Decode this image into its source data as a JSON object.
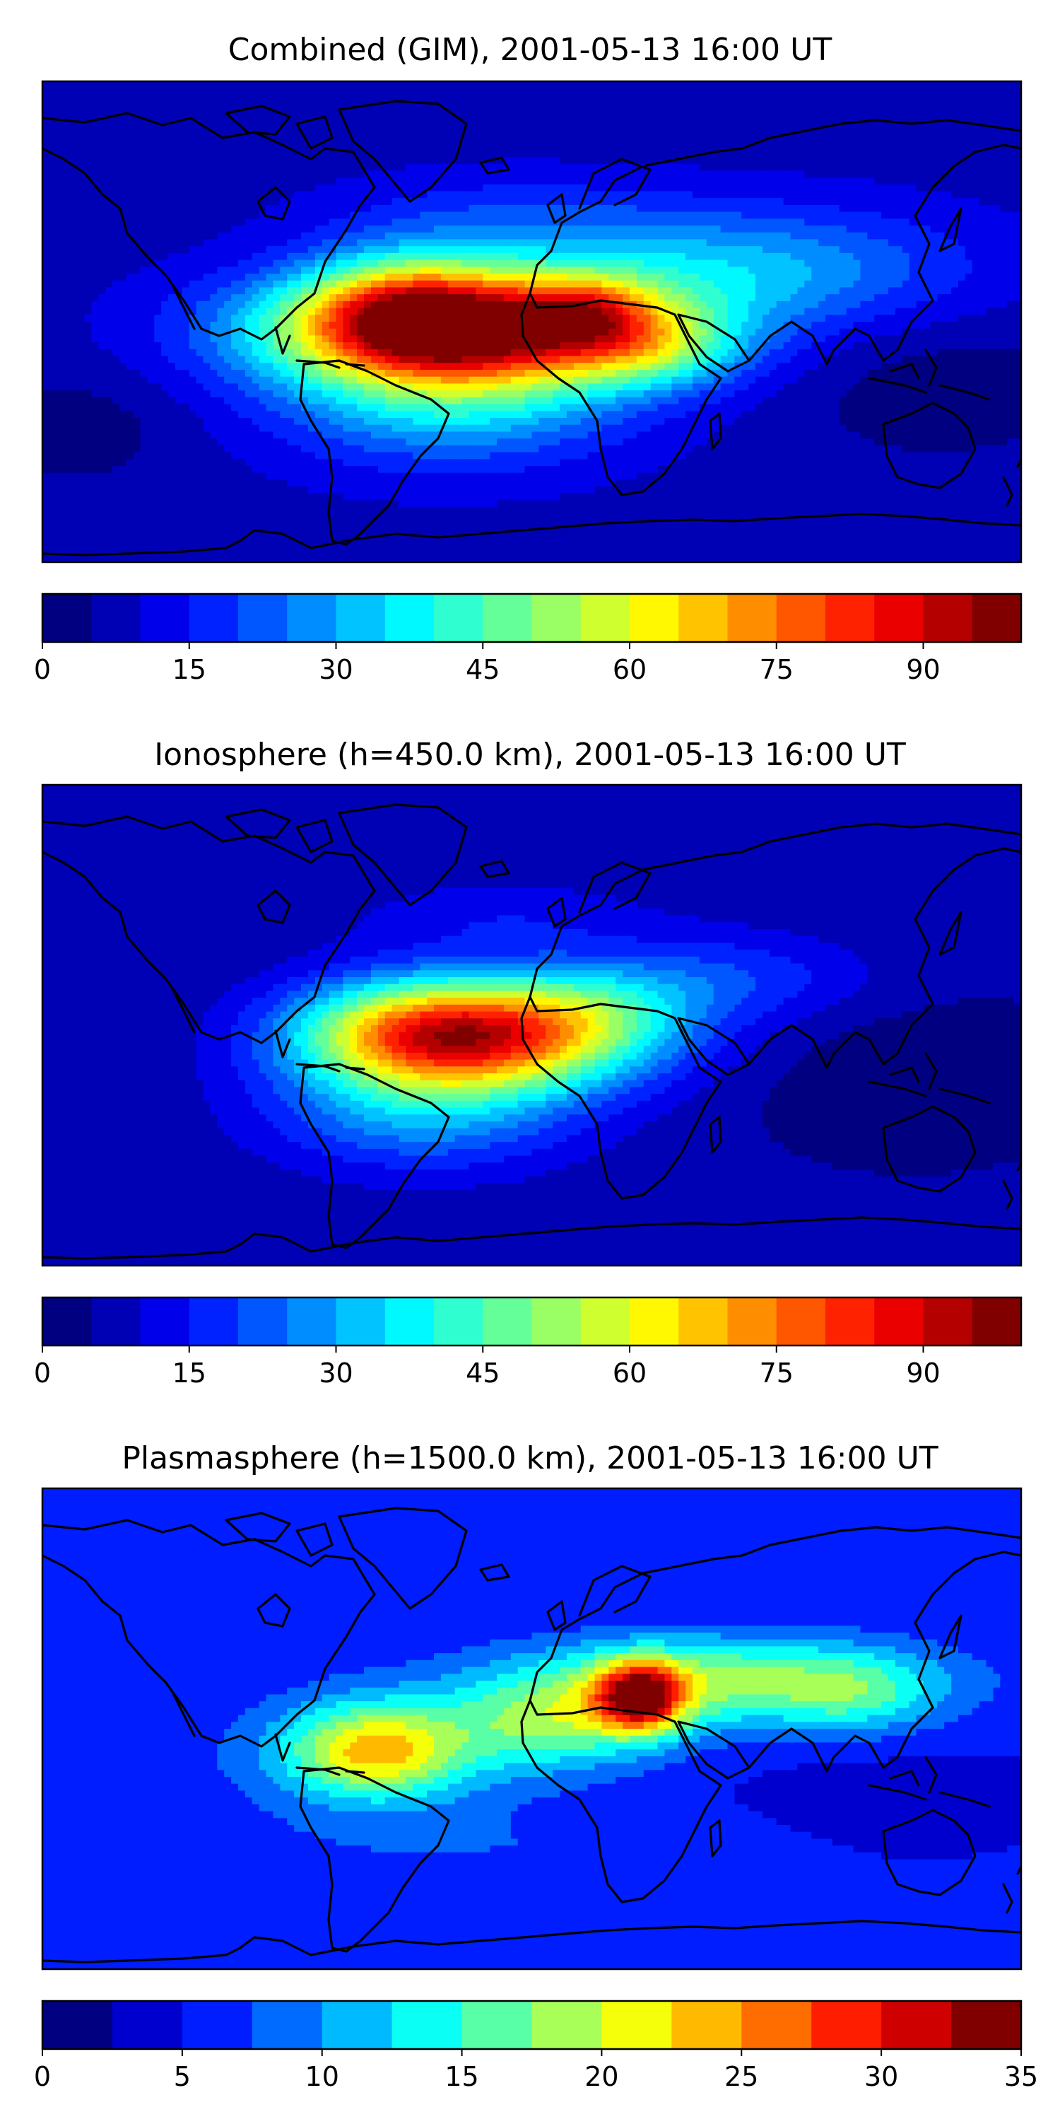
{
  "figure": {
    "panels": [
      {
        "title": "Combined (GIM), 2001-05-13 16:00 UT",
        "colorbar": {
          "vmin": 0,
          "vmax": 100,
          "levels": 20,
          "ticks": [
            "0",
            "15",
            "30",
            "45",
            "60",
            "75",
            "90"
          ],
          "tick_values": [
            0,
            15,
            30,
            45,
            60,
            75,
            90
          ]
        },
        "field": {
          "background": 8,
          "blobs": [
            {
              "lon": -22,
              "lat": -2,
              "amp": 84,
              "slon": 52,
              "slat": 15
            },
            {
              "lon": 20,
              "lat": 4,
              "amp": 22,
              "slon": 16,
              "slat": 9
            },
            {
              "lon": -48,
              "lat": 6,
              "amp": 30,
              "slon": 24,
              "slat": 14
            },
            {
              "lon": -30,
              "lat": -28,
              "amp": 26,
              "slon": 45,
              "slat": 18
            },
            {
              "lon": 80,
              "lat": 20,
              "amp": 22,
              "slon": 55,
              "slat": 16
            },
            {
              "lon": 45,
              "lat": -10,
              "amp": 20,
              "slon": 22,
              "slat": 10
            },
            {
              "lon": -10,
              "lat": 38,
              "amp": 10,
              "slon": 45,
              "slat": 12
            },
            {
              "lon": 150,
              "lat": -25,
              "amp": -6,
              "slon": 40,
              "slat": 20
            },
            {
              "lon": -170,
              "lat": -40,
              "amp": -6,
              "slon": 30,
              "slat": 15
            }
          ]
        }
      },
      {
        "title": "Ionosphere  (h=450.0 km), 2001-05-13 16:00 UT",
        "colorbar": {
          "vmin": 0,
          "vmax": 100,
          "levels": 20,
          "ticks": [
            "0",
            "15",
            "30",
            "45",
            "60",
            "75",
            "90"
          ],
          "tick_values": [
            0,
            15,
            30,
            45,
            60,
            75,
            90
          ]
        },
        "field": {
          "background": 6,
          "blobs": [
            {
              "lon": -18,
              "lat": -5,
              "amp": 64,
              "slon": 42,
              "slat": 14
            },
            {
              "lon": -45,
              "lat": 0,
              "amp": 26,
              "slon": 30,
              "slat": 14
            },
            {
              "lon": -40,
              "lat": -32,
              "amp": 22,
              "slon": 40,
              "slat": 16
            },
            {
              "lon": 20,
              "lat": 8,
              "amp": 18,
              "slon": 30,
              "slat": 12
            },
            {
              "lon": 75,
              "lat": 18,
              "amp": 12,
              "slon": 35,
              "slat": 12
            },
            {
              "lon": -10,
              "lat": 40,
              "amp": 8,
              "slon": 40,
              "slat": 10
            },
            {
              "lon": 140,
              "lat": -20,
              "amp": -5,
              "slon": 40,
              "slat": 20
            }
          ]
        }
      },
      {
        "title": "Plasmasphere (h=1500.0 km), 2001-05-13 16:00 UT",
        "colorbar": {
          "vmin": 0,
          "vmax": 35,
          "levels": 14,
          "ticks": [
            "0",
            "5",
            "10",
            "15",
            "20",
            "25",
            "30",
            "35"
          ],
          "tick_values": [
            0,
            5,
            10,
            15,
            20,
            25,
            30,
            35
          ]
        },
        "field": {
          "background": 5,
          "blobs": [
            {
              "lon": 40,
              "lat": 12,
              "amp": 21,
              "slon": 11,
              "slat": 9
            },
            {
              "lon": 70,
              "lat": 18,
              "amp": 13,
              "slon": 55,
              "slat": 12
            },
            {
              "lon": 10,
              "lat": 2,
              "amp": 10,
              "slon": 28,
              "slat": 12
            },
            {
              "lon": -58,
              "lat": -8,
              "amp": 14,
              "slon": 22,
              "slat": 12
            },
            {
              "lon": -55,
              "lat": -10,
              "amp": 5,
              "slon": 45,
              "slat": 18
            },
            {
              "lon": 120,
              "lat": 12,
              "amp": 5,
              "slon": 20,
              "slat": 10
            },
            {
              "lon": 0,
              "lat": -45,
              "amp": 2,
              "slon": 90,
              "slat": 10
            },
            {
              "lon": 130,
              "lat": -30,
              "amp": -2,
              "slon": 30,
              "slat": 12
            }
          ]
        }
      }
    ],
    "colormap": "jet"
  }
}
